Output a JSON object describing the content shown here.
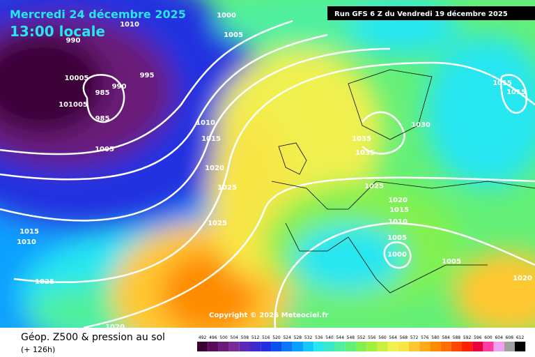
{
  "header": {
    "date": "Mercredi 24 décembre 2025",
    "time": "13:00 locale",
    "run": "Run GFS 6 Z du Vendredi 19 décembre 2025"
  },
  "map": {
    "copyright": "Copyright © 2025 Meteociel.fr",
    "isobar_labels": [
      "1000",
      "1010",
      "990",
      "1005",
      "995",
      "990",
      "985",
      "985",
      "10005",
      "101005",
      "1005",
      "1010",
      "1015",
      "1020",
      "1025",
      "1025",
      "1035",
      "1035",
      "1030",
      "1025",
      "1020",
      "1015",
      "1010",
      "1005",
      "1000",
      "1005",
      "1015",
      "1015",
      "1020",
      "1015",
      "1010",
      "1025",
      "1020"
    ]
  },
  "legend": {
    "title": "Géop. Z500 & pression au sol",
    "subtitle": "(+ 126h)",
    "values": [
      492,
      496,
      500,
      504,
      508,
      512,
      516,
      520,
      524,
      528,
      532,
      536,
      540,
      544,
      548,
      552,
      556,
      560,
      564,
      568,
      572,
      576,
      580,
      584,
      588,
      592,
      596,
      600,
      604,
      608,
      612
    ],
    "colors": [
      "#3a0036",
      "#5a0a5a",
      "#6a1a78",
      "#7a2a96",
      "#5a2ab4",
      "#3a2ad0",
      "#2030e0",
      "#0a50f0",
      "#0a78f8",
      "#0aa0ff",
      "#14c8ff",
      "#28e6f0",
      "#3ce6c8",
      "#50f0a0",
      "#64f078",
      "#82f050",
      "#a0f03c",
      "#c8f03c",
      "#f0f050",
      "#f8e646",
      "#ffc832",
      "#ffaa14",
      "#ff8c00",
      "#ff6e00",
      "#ff4600",
      "#ff1e00",
      "#e6003c",
      "#ff3ca0",
      "#f0a0f0",
      "#a0a0a0",
      "#000000"
    ]
  }
}
